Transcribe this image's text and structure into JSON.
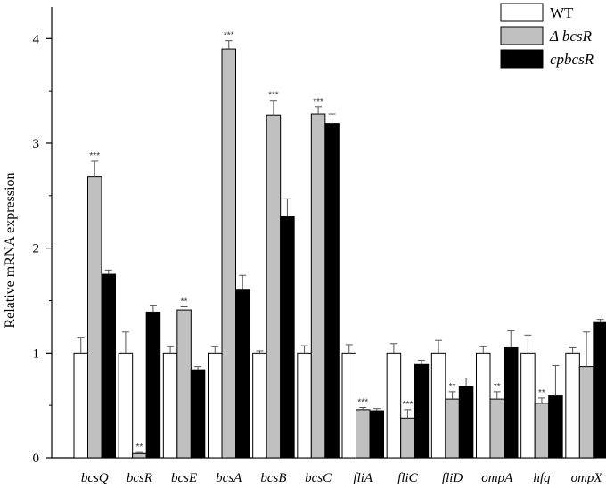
{
  "chart_data": {
    "type": "bar",
    "title": "",
    "xlabel": "",
    "ylabel": "Relative mRNA expression",
    "ylim": [
      0,
      4.3
    ],
    "yticks": [
      0,
      1,
      2,
      3,
      4
    ],
    "grid": false,
    "legend_position": "top-right",
    "categories": [
      "bcsQ",
      "bcsR",
      "bcsE",
      "bcsA",
      "bcsB",
      "bcsC",
      "fliA",
      "fliC",
      "fliD",
      "ompA",
      "hfq",
      "ompX"
    ],
    "series": [
      {
        "name": "WT",
        "color": "#ffffff",
        "values": [
          1.0,
          1.0,
          1.0,
          1.0,
          1.0,
          1.0,
          1.0,
          1.0,
          1.0,
          1.0,
          1.0,
          1.0
        ],
        "errors": [
          0.15,
          0.2,
          0.06,
          0.06,
          0.02,
          0.07,
          0.08,
          0.09,
          0.12,
          0.06,
          0.17,
          0.05
        ],
        "significance": [
          "",
          "",
          "",
          "",
          "",
          "",
          "",
          "",
          "",
          "",
          "",
          ""
        ]
      },
      {
        "name": "Δ bcsR",
        "color": "#c0c0c0",
        "values": [
          2.68,
          0.04,
          1.41,
          3.9,
          3.27,
          3.28,
          0.46,
          0.38,
          0.56,
          0.56,
          0.52,
          0.87
        ],
        "errors": [
          0.15,
          0.01,
          0.03,
          0.08,
          0.14,
          0.07,
          0.02,
          0.08,
          0.07,
          0.07,
          0.05,
          0.33
        ],
        "significance": [
          "***",
          "**",
          "**",
          "***",
          "***",
          "***",
          "***",
          "***",
          "**",
          "**",
          "**",
          ""
        ]
      },
      {
        "name": "cpbcsR",
        "color": "#000000",
        "values": [
          1.75,
          1.39,
          0.84,
          1.6,
          2.3,
          3.19,
          0.45,
          0.89,
          0.68,
          1.05,
          0.59,
          1.29
        ],
        "errors": [
          0.04,
          0.06,
          0.03,
          0.14,
          0.17,
          0.09,
          0.02,
          0.04,
          0.08,
          0.16,
          0.29,
          0.03
        ],
        "significance": [
          "",
          "",
          "",
          "",
          "",
          "",
          "",
          "",
          "",
          "",
          "",
          ""
        ]
      }
    ]
  }
}
